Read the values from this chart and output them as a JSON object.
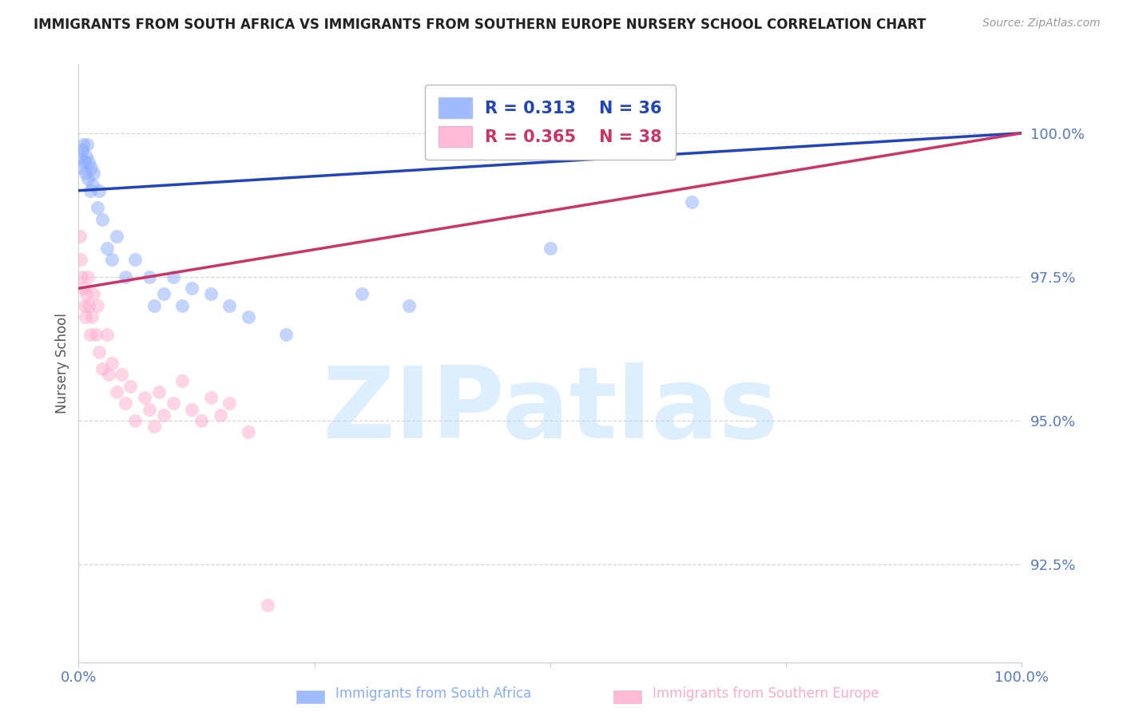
{
  "title": "IMMIGRANTS FROM SOUTH AFRICA VS IMMIGRANTS FROM SOUTHERN EUROPE NURSERY SCHOOL CORRELATION CHART",
  "source": "Source: ZipAtlas.com",
  "ylabel": "Nursery School",
  "r_blue": 0.313,
  "n_blue": 36,
  "r_pink": 0.365,
  "n_pink": 38,
  "legend_blue": "Immigrants from South Africa",
  "legend_pink": "Immigrants from Southern Europe",
  "ytick_values": [
    92.5,
    95.0,
    97.5,
    100.0
  ],
  "ylim": [
    90.8,
    101.2
  ],
  "xlim": [
    0.0,
    100.0
  ],
  "blue_x": [
    0.2,
    0.3,
    0.4,
    0.5,
    0.6,
    0.7,
    0.8,
    0.9,
    1.0,
    1.1,
    1.2,
    1.3,
    1.5,
    1.6,
    2.0,
    2.2,
    2.5,
    3.0,
    3.5,
    4.0,
    5.0,
    6.0,
    7.5,
    8.0,
    9.0,
    10.0,
    11.0,
    12.0,
    14.0,
    16.0,
    18.0,
    22.0,
    30.0,
    35.0,
    50.0,
    65.0
  ],
  "blue_y": [
    99.6,
    99.4,
    99.7,
    99.8,
    99.5,
    99.3,
    99.6,
    99.8,
    99.2,
    99.5,
    99.0,
    99.4,
    99.1,
    99.3,
    98.7,
    99.0,
    98.5,
    98.0,
    97.8,
    98.2,
    97.5,
    97.8,
    97.5,
    97.0,
    97.2,
    97.5,
    97.0,
    97.3,
    97.2,
    97.0,
    96.8,
    96.5,
    97.2,
    97.0,
    98.0,
    98.8
  ],
  "pink_x": [
    0.1,
    0.2,
    0.3,
    0.5,
    0.6,
    0.7,
    0.8,
    1.0,
    1.1,
    1.2,
    1.4,
    1.6,
    1.8,
    2.0,
    2.2,
    2.5,
    3.0,
    3.2,
    3.5,
    4.0,
    4.5,
    5.0,
    5.5,
    6.0,
    7.0,
    7.5,
    8.0,
    8.5,
    9.0,
    10.0,
    11.0,
    12.0,
    13.0,
    14.0,
    15.0,
    16.0,
    18.0,
    20.0
  ],
  "pink_y": [
    98.2,
    97.8,
    97.5,
    97.3,
    97.0,
    96.8,
    97.2,
    97.5,
    97.0,
    96.5,
    96.8,
    97.2,
    96.5,
    97.0,
    96.2,
    95.9,
    96.5,
    95.8,
    96.0,
    95.5,
    95.8,
    95.3,
    95.6,
    95.0,
    95.4,
    95.2,
    94.9,
    95.5,
    95.1,
    95.3,
    95.7,
    95.2,
    95.0,
    95.4,
    95.1,
    95.3,
    94.8,
    91.8
  ],
  "blue_line_start_y": 99.0,
  "blue_line_end_y": 100.0,
  "pink_line_start_y": 97.3,
  "pink_line_end_y": 100.0,
  "background_color": "#ffffff",
  "grid_color": "#cccccc",
  "blue_dot_color": "#88aaff",
  "pink_dot_color": "#ffaacc",
  "blue_line_color": "#2244bb",
  "pink_line_color": "#cc3366",
  "watermark_color": "#ddeeff",
  "title_color": "#222222",
  "tick_label_color": "#5577cc",
  "ylabel_color": "#555555",
  "source_color": "#999999"
}
